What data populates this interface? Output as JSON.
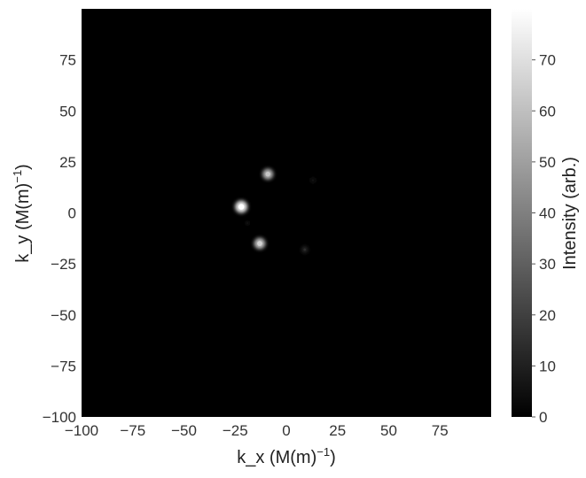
{
  "chart_data": {
    "type": "heatmap",
    "xlabel": "k_x (M(m)",
    "xlabel_sup": "−1",
    "xlabel_end": ")",
    "ylabel": "k_y (M(m)",
    "ylabel_sup": "−1",
    "ylabel_end": ")",
    "xlim": [
      -100,
      100
    ],
    "ylim": [
      -100,
      100
    ],
    "x_ticks": [
      -100,
      -75,
      -50,
      -25,
      0,
      25,
      50,
      75
    ],
    "x_tick_labels": [
      "−100",
      "−75",
      "−50",
      "−25",
      "0",
      "25",
      "50",
      "75"
    ],
    "y_ticks": [
      -100,
      -75,
      -50,
      -25,
      0,
      25,
      50,
      75
    ],
    "y_tick_labels": [
      "−100",
      "−75",
      "−50",
      "−25",
      "0",
      "25",
      "50",
      "75"
    ],
    "colormap": "gray",
    "background_color": "#000000",
    "colorbar": {
      "label": "Intensity (arb.)",
      "min": 0,
      "max": 80,
      "ticks": [
        0,
        10,
        20,
        30,
        40,
        50,
        60,
        70
      ],
      "tick_labels": [
        "0",
        "10",
        "20",
        "30",
        "40",
        "50",
        "60",
        "70"
      ]
    },
    "peaks": [
      {
        "x": -22,
        "y": 3,
        "intensity": 80
      },
      {
        "x": -9,
        "y": 19,
        "intensity": 62
      },
      {
        "x": -13,
        "y": -15,
        "intensity": 66
      },
      {
        "x": 9,
        "y": -18,
        "intensity": 14
      },
      {
        "x": 13,
        "y": 16,
        "intensity": 6
      },
      {
        "x": -19,
        "y": -5,
        "intensity": 5
      }
    ],
    "grid": false
  }
}
